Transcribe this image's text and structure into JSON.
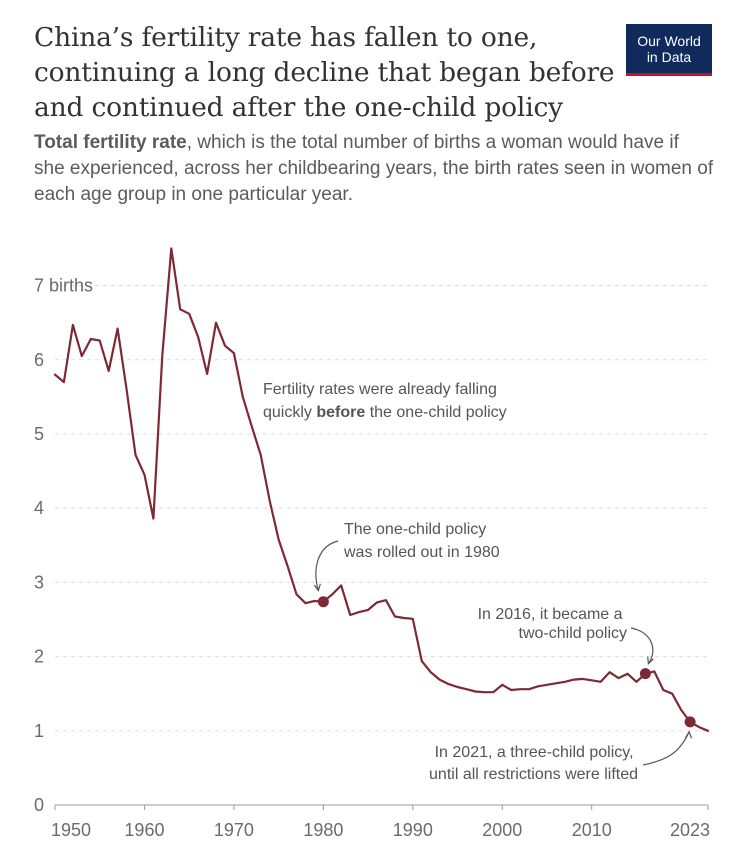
{
  "header": {
    "title": "China’s fertility rate has fallen to one, continuing a long decline that began before and continued after the one-child policy",
    "subtitle_bold": "Total fertility rate",
    "subtitle_rest": ", which is the total number of births a woman would have if she experienced, across her childbearing years, the birth rates seen in women of each age group in one particular year.",
    "logo_line1": "Our World",
    "logo_line2": "in Data"
  },
  "colors": {
    "line": "#7d2a35",
    "grid": "#dddddd",
    "axis": "#6b6b6b",
    "logo_bg": "#102a5c",
    "logo_accent": "#c8102e"
  },
  "chart_data": {
    "type": "line",
    "title": "",
    "xlabel": "",
    "ylabel": "",
    "xlim": [
      1950,
      2023
    ],
    "ylim": [
      0,
      7.6
    ],
    "grid": "horizontal dashed",
    "x_ticks": [
      "1950",
      "1960",
      "1970",
      "1980",
      "1990",
      "2000",
      "2010",
      "2023"
    ],
    "y_ticks": [
      "0",
      "1",
      "2",
      "3",
      "4",
      "5",
      "6",
      "7 births"
    ],
    "series": [
      {
        "x": [
          1950,
          1951,
          1952,
          1953,
          1954,
          1955,
          1956,
          1957,
          1958,
          1959,
          1960,
          1961,
          1962,
          1963,
          1964,
          1965,
          1966,
          1967,
          1968,
          1969,
          1970,
          1971,
          1972,
          1973,
          1974,
          1975,
          1976,
          1977,
          1978,
          1979,
          1980,
          1981,
          1982,
          1983,
          1984,
          1985,
          1986,
          1987,
          1988,
          1989,
          1990,
          1991,
          1992,
          1993,
          1994,
          1995,
          1996,
          1997,
          1998,
          1999,
          2000,
          2001,
          2002,
          2003,
          2004,
          2005,
          2006,
          2007,
          2008,
          2009,
          2010,
          2011,
          2012,
          2013,
          2014,
          2015,
          2016,
          2017,
          2018,
          2019,
          2020,
          2021,
          2022,
          2023
        ],
        "values": [
          5.8,
          5.7,
          6.47,
          6.05,
          6.28,
          6.26,
          5.85,
          6.42,
          5.6,
          4.72,
          4.45,
          3.86,
          6.06,
          7.5,
          6.68,
          6.62,
          6.31,
          5.81,
          6.5,
          6.19,
          6.09,
          5.5,
          5.1,
          4.72,
          4.1,
          3.58,
          3.22,
          2.84,
          2.72,
          2.75,
          2.74,
          2.84,
          2.96,
          2.56,
          2.6,
          2.63,
          2.73,
          2.76,
          2.54,
          2.52,
          2.51,
          1.94,
          1.79,
          1.69,
          1.63,
          1.59,
          1.56,
          1.53,
          1.52,
          1.52,
          1.62,
          1.55,
          1.56,
          1.56,
          1.6,
          1.62,
          1.64,
          1.66,
          1.69,
          1.7,
          1.68,
          1.66,
          1.79,
          1.71,
          1.77,
          1.66,
          1.77,
          1.8,
          1.55,
          1.5,
          1.28,
          1.12,
          1.05,
          1.0
        ]
      }
    ],
    "markers": [
      {
        "year": 1980,
        "value": 2.74
      },
      {
        "year": 2016,
        "value": 1.77
      },
      {
        "year": 2021,
        "value": 1.12
      }
    ],
    "annotations": [
      {
        "line1": "Fertility rates were already falling",
        "line2_pre": "quickly ",
        "line2_bold": "before",
        "line2_post": " the one-child policy"
      },
      {
        "line1": "The one-child policy",
        "line2": "was rolled out in 1980"
      },
      {
        "line1": "In 2016, it became a",
        "line2": "two-child policy"
      },
      {
        "line1": "In 2021, a three-child policy,",
        "line2": "until all restrictions were lifted"
      }
    ]
  }
}
